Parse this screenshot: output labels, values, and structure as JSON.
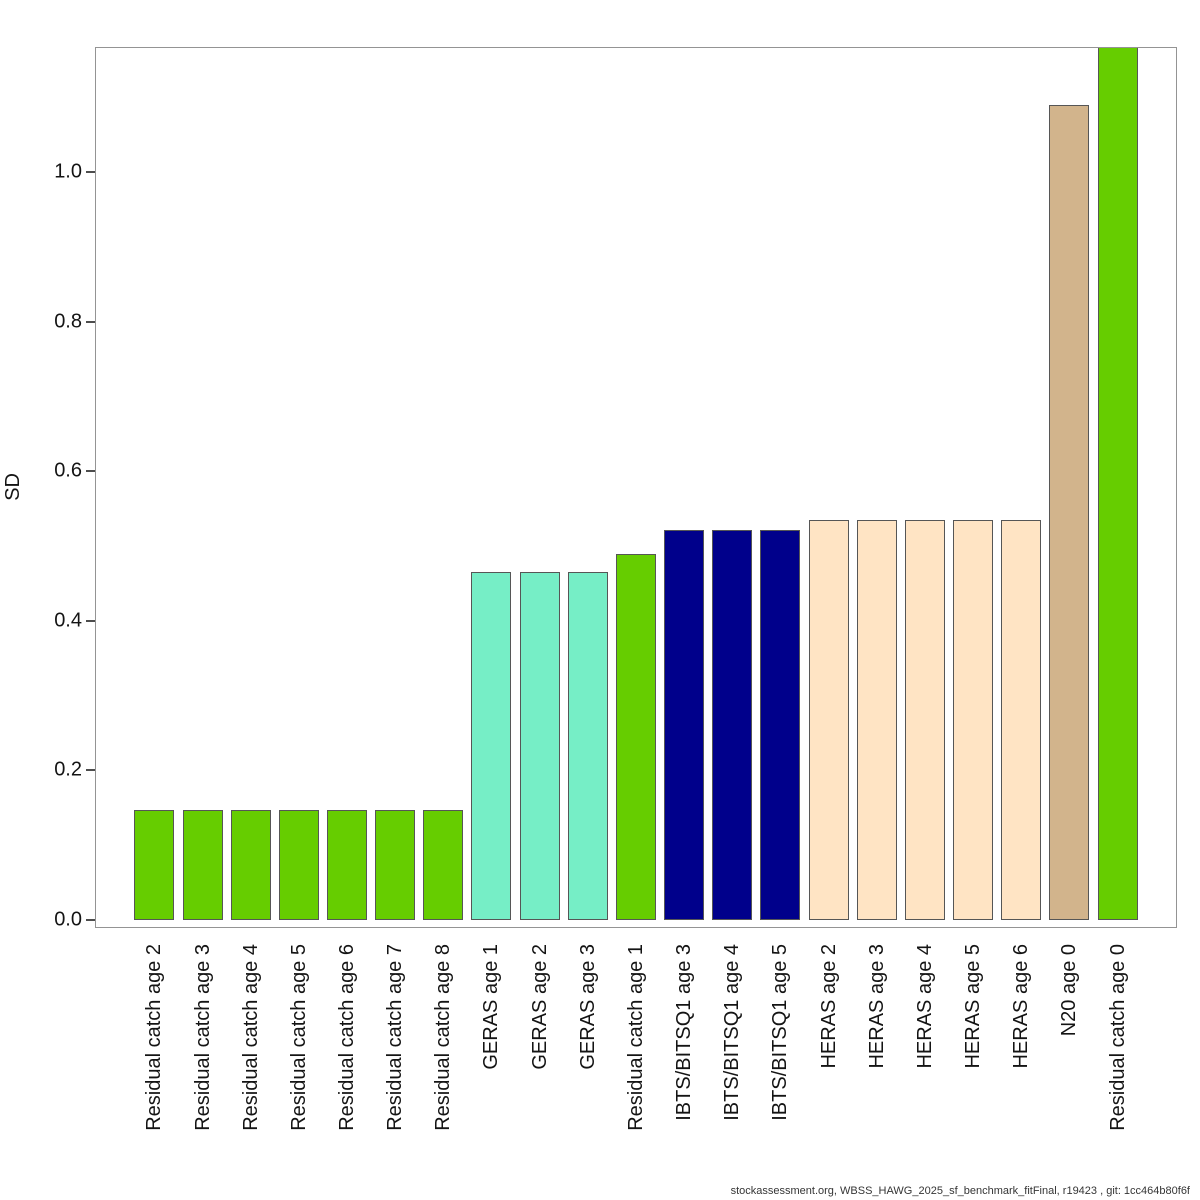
{
  "chart_data": {
    "type": "bar",
    "title": "",
    "xlabel": "",
    "ylabel": "SD",
    "ylim": [
      0,
      1.17
    ],
    "grid": false,
    "legend": "none",
    "ytick_labels": [
      "0.0",
      "0.2",
      "0.4",
      "0.6",
      "0.8",
      "1.0"
    ],
    "categories": [
      "Residual catch age 2",
      "Residual catch age 3",
      "Residual catch age 4",
      "Residual catch age 5",
      "Residual catch age 6",
      "Residual catch age 7",
      "Residual catch age 8",
      "GERAS age 1",
      "GERAS age 2",
      "GERAS age 3",
      "Residual catch age 1",
      "IBTS/BITSQ1 age 3",
      "IBTS/BITSQ1 age 4",
      "IBTS/BITSQ1 age 5",
      "HERAS age 2",
      "HERAS age 3",
      "HERAS age 4",
      "HERAS age 5",
      "HERAS age 6",
      "N20 age 0",
      "Residual catch age 0"
    ],
    "values": [
      0.147,
      0.147,
      0.147,
      0.147,
      0.147,
      0.147,
      0.147,
      0.465,
      0.465,
      0.465,
      0.49,
      0.522,
      0.522,
      0.522,
      0.535,
      0.535,
      0.535,
      0.535,
      0.535,
      1.09,
      1.17
    ],
    "bar_colors": [
      "#66CD00",
      "#66CD00",
      "#66CD00",
      "#66CD00",
      "#66CD00",
      "#66CD00",
      "#66CD00",
      "#76EEC6",
      "#76EEC6",
      "#76EEC6",
      "#66CD00",
      "#00008B",
      "#00008B",
      "#00008B",
      "#FFE4C4",
      "#FFE4C4",
      "#FFE4C4",
      "#FFE4C4",
      "#FFE4C4",
      "#D2B48C",
      "#66CD00"
    ],
    "groups": [
      {
        "name": "Residual catch",
        "color": "#66CD00"
      },
      {
        "name": "GERAS",
        "color": "#76EEC6"
      },
      {
        "name": "IBTS/BITSQ1",
        "color": "#00008B"
      },
      {
        "name": "HERAS",
        "color": "#FFE4C4"
      },
      {
        "name": "N20",
        "color": "#D2B48C"
      }
    ]
  },
  "footer": {
    "text": "stockassessment.org, WBSS_HAWG_2025_sf_benchmark_fitFinal, r19423 , git: 1cc464b80f6f"
  }
}
